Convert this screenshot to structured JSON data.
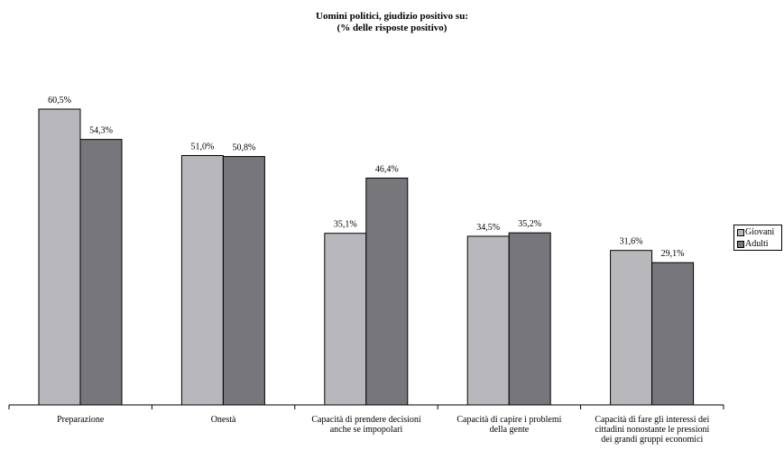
{
  "chart_data": {
    "type": "bar",
    "title": "Uomini politici, giudizio positivo su:",
    "subtitle": "(% delle risposte positivo)",
    "categories": [
      [
        "Preparazione"
      ],
      [
        "Onestà"
      ],
      [
        "Capacità di prendere decisioni",
        "anche se impopolari"
      ],
      [
        "Capacità di capire i problemi",
        "della gente"
      ],
      [
        "Capacità di fare gli interessi dei",
        "cittadini nonostante le pressioni",
        "dei grandi gruppi economici"
      ]
    ],
    "series": [
      {
        "name": "Giovani",
        "color": "#b8b8bc",
        "values": [
          60.5,
          51.0,
          35.1,
          34.5,
          31.6
        ],
        "labels": [
          "60,5%",
          "51,0%",
          "35,1%",
          "34,5%",
          "31,6%"
        ]
      },
      {
        "name": "Adulti",
        "color": "#77777b",
        "values": [
          54.3,
          50.8,
          46.4,
          35.2,
          29.1
        ],
        "labels": [
          "54,3%",
          "50,8%",
          "46,4%",
          "35,2%",
          "29,1%"
        ]
      }
    ],
    "ylim": [
      0,
      60.5
    ],
    "grid": false,
    "legend_placement": "right"
  }
}
